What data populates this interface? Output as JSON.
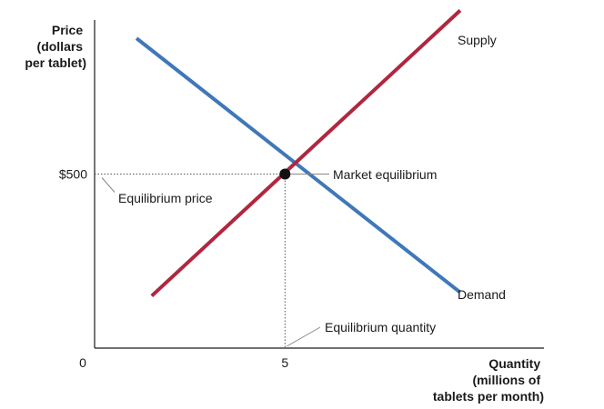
{
  "chart_data": {
    "type": "line",
    "ylabel_lines": [
      "Price",
      "(dollars",
      "per tablet)"
    ],
    "xlabel_lines": [
      "Quantity",
      "(millions of",
      "tablets per month)"
    ],
    "origin_label": "0",
    "x_ticks": [
      {
        "value": 5,
        "label": "5"
      }
    ],
    "y_ticks": [
      {
        "value": 500,
        "label": "$500"
      }
    ],
    "xlim": [
      0,
      11.8
    ],
    "ylim": [
      0,
      1000
    ],
    "grid": false,
    "legend": "none",
    "series": [
      {
        "name": "Supply",
        "color": "#b0273f",
        "points": [
          [
            1.5,
            150
          ],
          [
            9.6,
            970
          ]
        ]
      },
      {
        "name": "Demand",
        "color": "#3f78b8",
        "points": [
          [
            1.1,
            890
          ],
          [
            9.6,
            160
          ]
        ]
      }
    ],
    "equilibrium": {
      "x": 5,
      "y": 500,
      "label": "Market equilibrium",
      "price_label": "Equilibrium price",
      "quantity_label": "Equilibrium quantity"
    }
  }
}
